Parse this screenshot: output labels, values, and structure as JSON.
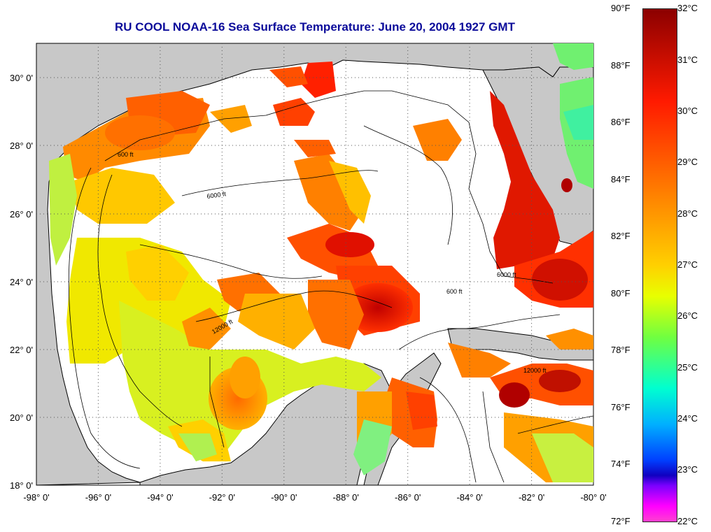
{
  "title": "RU COOL  NOAA-16  Sea Surface Temperature:  June 20, 2004 1927 GMT",
  "axes": {
    "x_ticks": [
      "-98° 0'",
      "-96° 0'",
      "-94° 0'",
      "-92° 0'",
      "-90° 0'",
      "-88° 0'",
      "-86° 0'",
      "-84° 0'",
      "-82° 0'",
      "-80° 0'"
    ],
    "y_ticks": [
      "30° 0'",
      "28° 0'",
      "26° 0'",
      "24° 0'",
      "22° 0'",
      "20° 0'",
      "18° 0'"
    ],
    "lon_range": [
      -98,
      -80
    ],
    "lat_range": [
      18,
      31
    ],
    "grid": "dotted"
  },
  "contour_labels": [
    "600 ft",
    "6000 ft",
    "12000 ft",
    "600 ft",
    "6000 ft",
    "12000 ft"
  ],
  "colorbar": {
    "fahrenheit": [
      "90°F",
      "88°F",
      "86°F",
      "84°F",
      "82°F",
      "80°F",
      "78°F",
      "76°F",
      "74°F",
      "72°F"
    ],
    "celsius": [
      "32°C",
      "31°C",
      "30°C",
      "29°C",
      "28°C",
      "27°C",
      "26°C",
      "25°C",
      "24°C",
      "23°C",
      "22°C"
    ]
  },
  "colors": {
    "land": "#c8c8c8",
    "cloud": "#ffffff",
    "title": "#0b0b9a"
  }
}
